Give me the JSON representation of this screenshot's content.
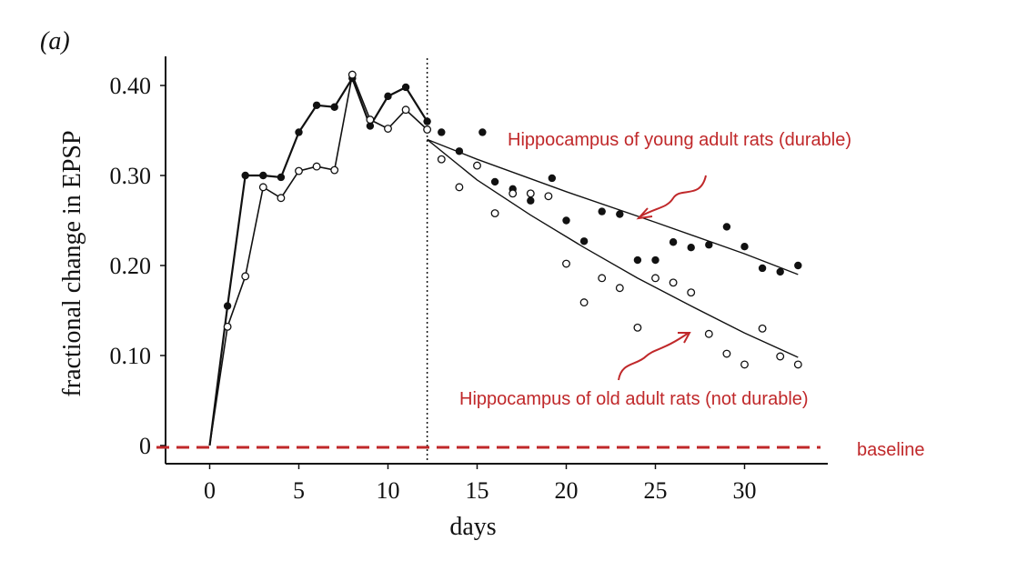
{
  "colors": {
    "ink": "#111111",
    "annotation": "#c0282a"
  },
  "chart_data": {
    "type": "scatter",
    "panel_label": "(a)",
    "title": "",
    "xlabel": "days",
    "ylabel": "fractional change in EPSP",
    "xlim": [
      -2.5,
      35
    ],
    "ylim": [
      -0.02,
      0.43
    ],
    "x_ticks": [
      0,
      5,
      10,
      15,
      20,
      25,
      30
    ],
    "y_ticks": [
      {
        "value": 0,
        "label": "0"
      },
      {
        "value": 0.1,
        "label": "0.10"
      },
      {
        "value": 0.2,
        "label": "0.20"
      },
      {
        "value": 0.3,
        "label": "0.30"
      },
      {
        "value": 0.4,
        "label": "0.40"
      }
    ],
    "grid": false,
    "divider_x": 12.2,
    "series": [
      {
        "group": "young",
        "marker": "filled",
        "connected_until": 12.2,
        "points": [
          [
            0,
            0.0
          ],
          [
            1,
            0.155
          ],
          [
            2,
            0.3
          ],
          [
            3,
            0.3
          ],
          [
            4,
            0.298
          ],
          [
            5,
            0.348
          ],
          [
            6,
            0.378
          ],
          [
            7,
            0.376
          ],
          [
            8,
            0.408
          ],
          [
            9,
            0.355
          ],
          [
            10,
            0.388
          ],
          [
            11,
            0.398
          ],
          [
            12.2,
            0.36
          ],
          [
            13,
            0.348
          ],
          [
            14,
            0.327
          ],
          [
            15.3,
            0.348
          ],
          [
            16,
            0.293
          ],
          [
            17,
            0.285
          ],
          [
            18,
            0.272
          ],
          [
            19.2,
            0.297
          ],
          [
            20,
            0.25
          ],
          [
            21,
            0.227
          ],
          [
            22,
            0.26
          ],
          [
            23,
            0.257
          ],
          [
            24,
            0.206
          ],
          [
            25,
            0.206
          ],
          [
            26,
            0.226
          ],
          [
            27,
            0.22
          ],
          [
            28,
            0.223
          ],
          [
            29,
            0.243
          ],
          [
            30,
            0.221
          ],
          [
            31,
            0.197
          ],
          [
            32,
            0.193
          ],
          [
            33,
            0.2
          ]
        ],
        "fit": [
          [
            12.2,
            0.34
          ],
          [
            15,
            0.318
          ],
          [
            20,
            0.282
          ],
          [
            25,
            0.248
          ],
          [
            30,
            0.213
          ],
          [
            33,
            0.19
          ]
        ]
      },
      {
        "group": "old",
        "marker": "open",
        "connected_until": 12.2,
        "points": [
          [
            0,
            0.0
          ],
          [
            1,
            0.132
          ],
          [
            2,
            0.188
          ],
          [
            3,
            0.287
          ],
          [
            4,
            0.275
          ],
          [
            5,
            0.305
          ],
          [
            6,
            0.31
          ],
          [
            7,
            0.306
          ],
          [
            8,
            0.412
          ],
          [
            9,
            0.362
          ],
          [
            10,
            0.352
          ],
          [
            11,
            0.373
          ],
          [
            12.2,
            0.351
          ],
          [
            13,
            0.318
          ],
          [
            14,
            0.287
          ],
          [
            15,
            0.311
          ],
          [
            16,
            0.258
          ],
          [
            17,
            0.28
          ],
          [
            18,
            0.28
          ],
          [
            19,
            0.277
          ],
          [
            20,
            0.202
          ],
          [
            21,
            0.159
          ],
          [
            22,
            0.186
          ],
          [
            23,
            0.175
          ],
          [
            24,
            0.131
          ],
          [
            25,
            0.186
          ],
          [
            26,
            0.181
          ],
          [
            27,
            0.17
          ],
          [
            28,
            0.124
          ],
          [
            29,
            0.102
          ],
          [
            30,
            0.09
          ],
          [
            31,
            0.13
          ],
          [
            32,
            0.099
          ],
          [
            33,
            0.09
          ]
        ],
        "fit": [
          [
            12.2,
            0.34
          ],
          [
            15,
            0.295
          ],
          [
            18,
            0.256
          ],
          [
            21,
            0.22
          ],
          [
            24,
            0.186
          ],
          [
            27,
            0.155
          ],
          [
            30,
            0.125
          ],
          [
            33,
            0.098
          ]
        ]
      }
    ],
    "baseline": {
      "value": -0.002,
      "label": "baseline"
    },
    "annotations": [
      {
        "id": "young",
        "text": "Hippocampus of young adult rats (durable)"
      },
      {
        "id": "old",
        "text": "Hippocampus of old adult rats (not durable)"
      }
    ]
  }
}
